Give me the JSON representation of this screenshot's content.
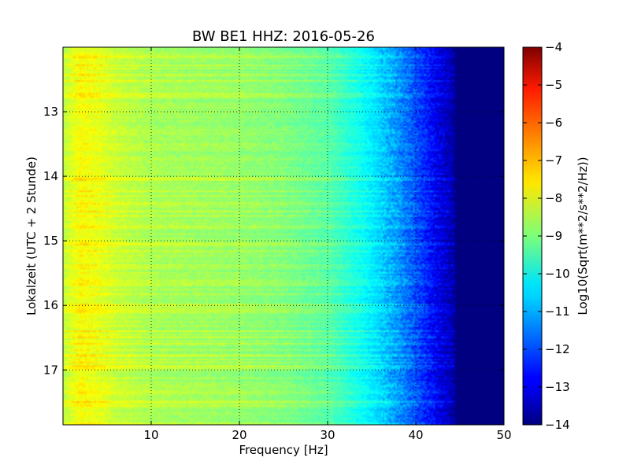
{
  "chart_data": {
    "type": "heatmap",
    "title": "BW BE1 HHZ: 2016-05-26",
    "xlabel": "Frequency [Hz]",
    "ylabel": "Lokalzeit (UTC + 2 Stunde)",
    "xlim": [
      0,
      50
    ],
    "ylim": [
      12.0,
      17.85
    ],
    "y_inverted": true,
    "x_ticks": [
      10,
      20,
      30,
      40,
      50
    ],
    "y_ticks": [
      13,
      14,
      15,
      16,
      17
    ],
    "grid": true,
    "colormap": "jet",
    "colorbar": {
      "label": "Log10(Sqrt(m**2/s**2/Hz))",
      "range": [
        -14,
        -4
      ],
      "ticks": [
        -4,
        -5,
        -6,
        -7,
        -8,
        -9,
        -10,
        -11,
        -12,
        -13,
        -14
      ]
    },
    "spectrum_profile": {
      "frequency_hz": [
        0,
        2,
        4,
        6,
        10,
        15,
        20,
        25,
        30,
        32,
        34,
        36,
        38,
        40,
        42,
        44,
        45,
        50
      ],
      "log10_amplitude": [
        -8.4,
        -7.8,
        -8.0,
        -8.3,
        -8.6,
        -8.7,
        -8.8,
        -9.0,
        -9.4,
        -9.8,
        -10.2,
        -10.7,
        -11.3,
        -12.0,
        -12.8,
        -13.5,
        -14.0,
        -14.0
      ]
    },
    "bright_bands_local_time": [
      14.05,
      14.3,
      14.55,
      15.05,
      16.0,
      16.4,
      17.35,
      17.5
    ]
  }
}
